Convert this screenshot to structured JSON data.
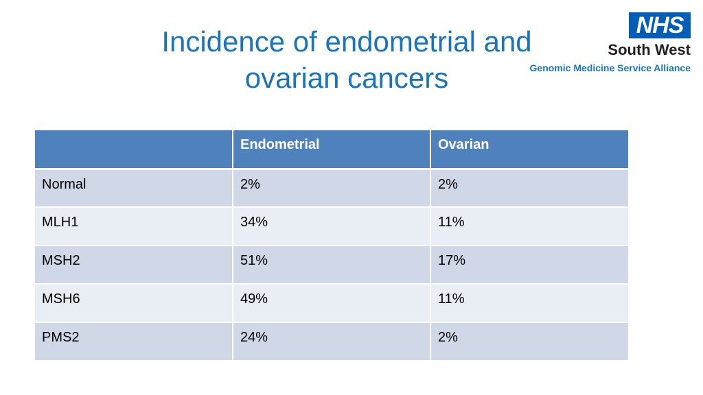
{
  "slide": {
    "title_line1": "Incidence of endometrial and",
    "title_line2": "ovarian cancers"
  },
  "logo": {
    "nhs": "NHS",
    "region": "South West",
    "alliance": "Genomic Medicine Service Alliance",
    "colors": {
      "nhs_blue": "#005eb8",
      "text_dark": "#231f20",
      "accent_blue": "#1874bd"
    }
  },
  "table": {
    "headers": [
      "",
      "Endometrial",
      "Ovarian"
    ],
    "rows": [
      [
        "Normal",
        "2%",
        "2%"
      ],
      [
        "MLH1",
        "34%",
        "11%"
      ],
      [
        "MSH2",
        "51%",
        "17%"
      ],
      [
        "MSH6",
        "49%",
        "11%"
      ],
      [
        "PMS2",
        "24%",
        "2%"
      ]
    ],
    "colors": {
      "header": "#4f81bd",
      "row_odd": "#d0d8e8",
      "row_even": "#e9edf4"
    }
  }
}
